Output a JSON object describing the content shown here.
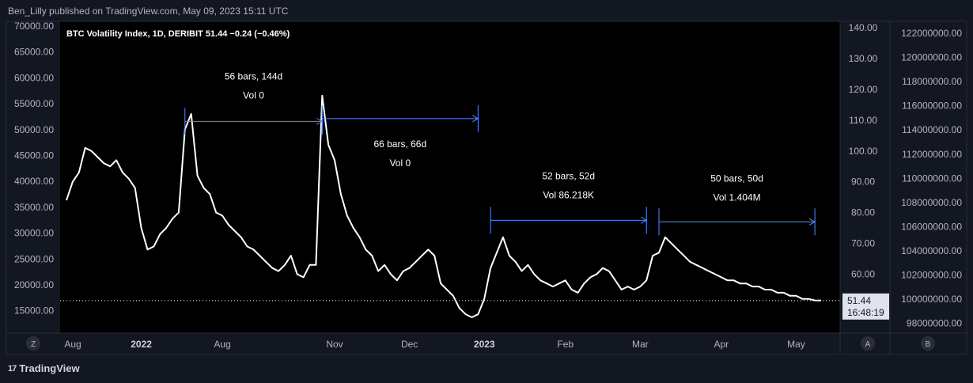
{
  "header": {
    "published": "Ben_Lilly published on TradingView.com, May 09, 2023 15:11 UTC"
  },
  "legend": {
    "symbol": "BTC Volatility Index, 1D, DERIBIT",
    "value": "51.44",
    "change": "−0.24 (−0.46%)"
  },
  "price_label": {
    "value": "51.44",
    "countdown": "16:48:19"
  },
  "brand": {
    "logo": "17",
    "name": "TradingView"
  },
  "corner_buttons": {
    "z": "Z",
    "a": "A",
    "b": "B"
  },
  "colors": {
    "line": "#ffffff",
    "measure": "#5b8cff",
    "pane": "#000000",
    "bg": "#131722",
    "text": "#b2b5be"
  },
  "chart_data": {
    "type": "line",
    "title": "BTC Volatility Index, 1D, DERIBIT",
    "ylim_right": [
      45,
      141.5
    ],
    "right_axis_ticks": [
      "140.00",
      "130.00",
      "120.00",
      "110.00",
      "100.00",
      "90.00",
      "80.00",
      "70.00",
      "60.00"
    ],
    "left_axis_ticks": [
      "70000.00",
      "65000.00",
      "60000.00",
      "55000.00",
      "50000.00",
      "45000.00",
      "40000.00",
      "35000.00",
      "30000.00",
      "25000.00",
      "20000.00",
      "15000.00"
    ],
    "far_right_axis_ticks": [
      "122000000.00",
      "120000000.00",
      "118000000.00",
      "116000000.00",
      "114000000.00",
      "112000000.00",
      "110000000.00",
      "108000000.00",
      "106000000.00",
      "104000000.00",
      "102000000.00",
      "100000000.00",
      "98000000.00"
    ],
    "x_ticks": [
      {
        "label": "Aug",
        "day": 0,
        "bold": false
      },
      {
        "label": "2022",
        "day": 12,
        "bold": true
      },
      {
        "label": "Aug",
        "day": 25,
        "bold": false
      },
      {
        "label": "Nov",
        "day": 43,
        "bold": false
      },
      {
        "label": "Dec",
        "day": 55,
        "bold": false
      },
      {
        "label": "2023",
        "day": 67,
        "bold": true
      },
      {
        "label": "Feb",
        "day": 80,
        "bold": false
      },
      {
        "label": "Mar",
        "day": 92,
        "bold": false
      },
      {
        "label": "Apr",
        "day": 105,
        "bold": false
      },
      {
        "label": "May",
        "day": 117,
        "bold": false
      }
    ],
    "x_range": [
      -1,
      124
    ],
    "series": [
      {
        "name": "BTC Volatility Index",
        "values": [
          [
            0,
            84
          ],
          [
            1,
            90
          ],
          [
            2,
            93
          ],
          [
            3,
            101
          ],
          [
            4,
            100
          ],
          [
            5,
            98
          ],
          [
            6,
            96
          ],
          [
            7,
            95
          ],
          [
            8,
            97
          ],
          [
            9,
            93
          ],
          [
            10,
            91
          ],
          [
            11,
            88
          ],
          [
            12,
            75
          ],
          [
            13,
            68
          ],
          [
            14,
            69
          ],
          [
            15,
            73
          ],
          [
            16,
            75
          ],
          [
            17,
            78
          ],
          [
            18,
            80
          ],
          [
            19,
            107
          ],
          [
            20,
            112
          ],
          [
            21,
            92
          ],
          [
            22,
            88
          ],
          [
            23,
            86
          ],
          [
            24,
            80
          ],
          [
            25,
            79
          ],
          [
            26,
            76
          ],
          [
            27,
            74
          ],
          [
            28,
            72
          ],
          [
            29,
            69
          ],
          [
            30,
            68
          ],
          [
            31,
            66
          ],
          [
            32,
            64
          ],
          [
            33,
            62
          ],
          [
            34,
            61
          ],
          [
            35,
            63
          ],
          [
            36,
            66
          ],
          [
            37,
            60
          ],
          [
            38,
            59
          ],
          [
            39,
            63
          ],
          [
            40,
            63
          ],
          [
            41,
            118
          ],
          [
            42,
            102
          ],
          [
            43,
            97
          ],
          [
            44,
            86
          ],
          [
            45,
            79
          ],
          [
            46,
            75
          ],
          [
            47,
            72
          ],
          [
            48,
            68
          ],
          [
            49,
            66
          ],
          [
            50,
            61
          ],
          [
            51,
            63
          ],
          [
            52,
            60
          ],
          [
            53,
            58
          ],
          [
            54,
            61
          ],
          [
            55,
            62
          ],
          [
            56,
            64
          ],
          [
            57,
            66
          ],
          [
            58,
            68
          ],
          [
            59,
            66
          ],
          [
            60,
            57
          ],
          [
            61,
            55
          ],
          [
            62,
            53
          ],
          [
            63,
            49
          ],
          [
            64,
            47
          ],
          [
            65,
            46
          ],
          [
            66,
            47
          ],
          [
            67,
            52
          ],
          [
            68,
            62
          ],
          [
            69,
            67
          ],
          [
            70,
            72
          ],
          [
            71,
            66
          ],
          [
            72,
            64
          ],
          [
            73,
            61
          ],
          [
            74,
            63
          ],
          [
            75,
            60
          ],
          [
            76,
            58
          ],
          [
            77,
            57
          ],
          [
            78,
            56
          ],
          [
            79,
            57
          ],
          [
            80,
            58
          ],
          [
            81,
            55
          ],
          [
            82,
            54
          ],
          [
            83,
            57
          ],
          [
            84,
            59
          ],
          [
            85,
            60
          ],
          [
            86,
            62
          ],
          [
            87,
            61
          ],
          [
            88,
            58
          ],
          [
            89,
            55
          ],
          [
            90,
            56
          ],
          [
            91,
            55
          ],
          [
            92,
            56
          ],
          [
            93,
            58
          ],
          [
            94,
            66
          ],
          [
            95,
            67
          ],
          [
            96,
            72
          ],
          [
            97,
            70
          ],
          [
            98,
            68
          ],
          [
            99,
            66
          ],
          [
            100,
            64
          ],
          [
            101,
            63
          ],
          [
            102,
            62
          ],
          [
            103,
            61
          ],
          [
            104,
            60
          ],
          [
            105,
            59
          ],
          [
            106,
            58
          ],
          [
            107,
            58
          ],
          [
            108,
            57
          ],
          [
            109,
            57
          ],
          [
            110,
            56
          ],
          [
            111,
            56
          ],
          [
            112,
            55
          ],
          [
            113,
            55
          ],
          [
            114,
            54
          ],
          [
            115,
            54
          ],
          [
            116,
            53
          ],
          [
            117,
            53
          ],
          [
            118,
            52
          ],
          [
            119,
            52
          ],
          [
            120,
            51.5
          ],
          [
            121,
            51.44
          ]
        ]
      }
    ],
    "last_value_line": 51.44,
    "measures": [
      {
        "from_day": 19,
        "to_day": 41,
        "at": 109.6,
        "label1": "56 bars, 144d",
        "label2": "Vol 0",
        "label_pos": "above"
      },
      {
        "from_day": 41,
        "to_day": 66,
        "at": 110.5,
        "label1": "66 bars, 66d",
        "label2": "Vol 0",
        "label_pos": "below"
      },
      {
        "from_day": 68,
        "to_day": 93,
        "at": 77.5,
        "label1": "52 bars, 52d",
        "label2": "Vol 86.218K",
        "label_pos": "above"
      },
      {
        "from_day": 95,
        "to_day": 120,
        "at": 77,
        "label1": "50 bars, 50d",
        "label2": "Vol 1.404M",
        "label_pos": "above"
      }
    ]
  }
}
